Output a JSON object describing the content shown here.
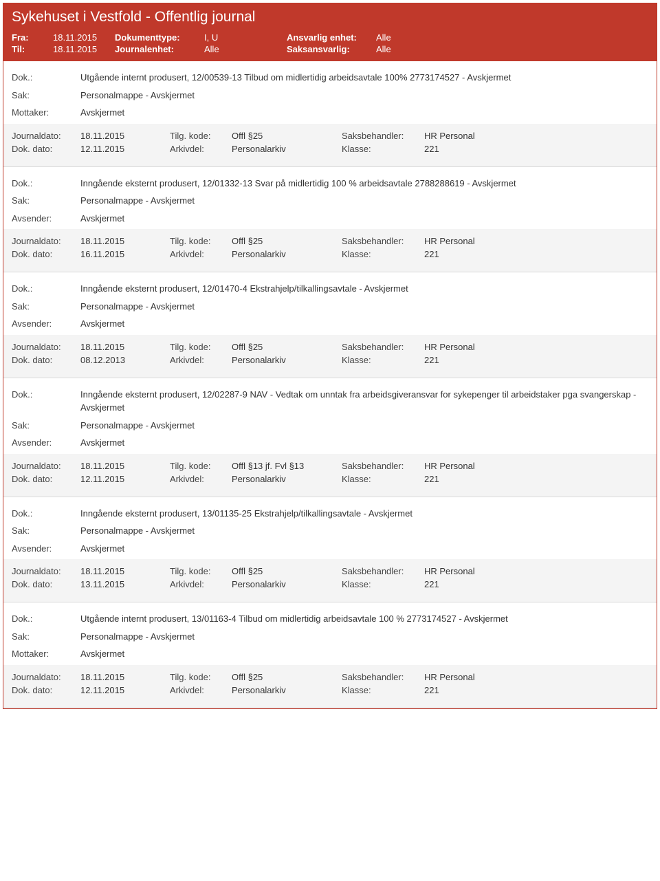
{
  "header": {
    "title": "Sykehuset i Vestfold - Offentlig journal",
    "fra_label": "Fra:",
    "fra_value": "18.11.2015",
    "til_label": "Til:",
    "til_value": "18.11.2015",
    "doktype_label": "Dokumenttype:",
    "doktype_value": "I, U",
    "journalenhet_label": "Journalenhet:",
    "journalenhet_value": "Alle",
    "ansvarlig_label": "Ansvarlig enhet:",
    "ansvarlig_value": "Alle",
    "saksansvarlig_label": "Saksansvarlig:",
    "saksansvarlig_value": "Alle"
  },
  "labels": {
    "dok": "Dok.:",
    "sak": "Sak:",
    "mottaker": "Mottaker:",
    "avsender": "Avsender:",
    "journaldato": "Journaldato:",
    "dokdato": "Dok. dato:",
    "tilgkode": "Tilg. kode:",
    "arkivdel": "Arkivdel:",
    "saksbehandler": "Saksbehandler:",
    "klasse": "Klasse:"
  },
  "entries": [
    {
      "dok": "Utgående internt produsert, 12/00539-13 Tilbud om midlertidig arbeidsavtale 100% 2773174527 - Avskjermet",
      "sak": "Personalmappe - Avskjermet",
      "party_label": "Mottaker:",
      "party": "Avskjermet",
      "journaldato": "18.11.2015",
      "dokdato": "12.11.2015",
      "tilgkode": "Offl §25",
      "arkivdel": "Personalarkiv",
      "saksbehandler": "HR Personal",
      "klasse": "221"
    },
    {
      "dok": "Inngående eksternt produsert, 12/01332-13 Svar på midlertidig 100 % arbeidsavtale 2788288619 - Avskjermet",
      "sak": "Personalmappe - Avskjermet",
      "party_label": "Avsender:",
      "party": "Avskjermet",
      "journaldato": "18.11.2015",
      "dokdato": "16.11.2015",
      "tilgkode": "Offl §25",
      "arkivdel": "Personalarkiv",
      "saksbehandler": "HR Personal",
      "klasse": "221"
    },
    {
      "dok": "Inngående eksternt produsert, 12/01470-4 Ekstrahjelp/tilkallingsavtale - Avskjermet",
      "sak": "Personalmappe - Avskjermet",
      "party_label": "Avsender:",
      "party": "Avskjermet",
      "journaldato": "18.11.2015",
      "dokdato": "08.12.2013",
      "tilgkode": "Offl §25",
      "arkivdel": "Personalarkiv",
      "saksbehandler": "HR Personal",
      "klasse": "221"
    },
    {
      "dok": "Inngående eksternt produsert, 12/02287-9 NAV - Vedtak om unntak fra arbeidsgiveransvar for sykepenger til arbeidstaker pga svangerskap - Avskjermet",
      "sak": "Personalmappe - Avskjermet",
      "party_label": "Avsender:",
      "party": "Avskjermet",
      "journaldato": "18.11.2015",
      "dokdato": "12.11.2015",
      "tilgkode": "Offl §13 jf. Fvl §13",
      "arkivdel": "Personalarkiv",
      "saksbehandler": "HR Personal",
      "klasse": "221"
    },
    {
      "dok": "Inngående eksternt produsert, 13/01135-25 Ekstrahjelp/tilkallingsavtale - Avskjermet",
      "sak": "Personalmappe - Avskjermet",
      "party_label": "Avsender:",
      "party": "Avskjermet",
      "journaldato": "18.11.2015",
      "dokdato": "13.11.2015",
      "tilgkode": "Offl §25",
      "arkivdel": "Personalarkiv",
      "saksbehandler": "HR Personal",
      "klasse": "221"
    },
    {
      "dok": "Utgående internt produsert, 13/01163-4 Tilbud om midlertidig arbeidsavtale 100 % 2773174527 - Avskjermet",
      "sak": "Personalmappe - Avskjermet",
      "party_label": "Mottaker:",
      "party": "Avskjermet",
      "journaldato": "18.11.2015",
      "dokdato": "12.11.2015",
      "tilgkode": "Offl §25",
      "arkivdel": "Personalarkiv",
      "saksbehandler": "HR Personal",
      "klasse": "221"
    }
  ],
  "colors": {
    "header_bg": "#c0392b",
    "header_text": "#ffffff",
    "border": "#d9d9d9",
    "meta_bg": "#f4f4f4"
  }
}
